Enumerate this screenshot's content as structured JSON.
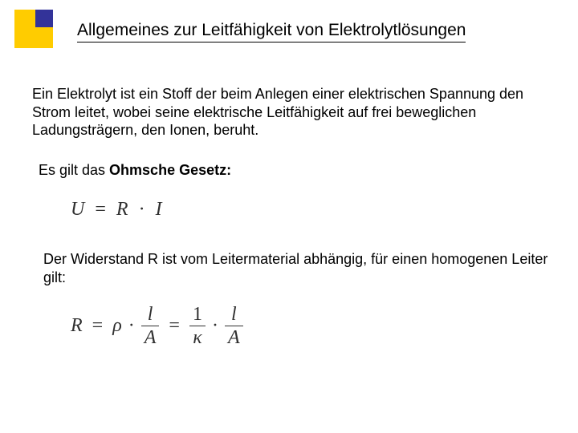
{
  "colors": {
    "background": "#ffffff",
    "text": "#000000",
    "formula_text": "#303030",
    "bullet_main": "#ffcc00",
    "bullet_accent": "#333399"
  },
  "title": "Allgemeines zur Leitfähigkeit von Elektrolytlösungen",
  "para1": "Ein Elektrolyt ist ein Stoff der beim Anlegen einer elektrischen Spannung den Strom leitet, wobei seine elektrische Leitfähigkeit auf frei beweglichen Ladungsträgern, den Ionen, beruht.",
  "para2_pre": "Es gilt das ",
  "para2_bold": "Ohmsche Gesetz:",
  "formula1": {
    "U": "U",
    "eq": "=",
    "R": "R",
    "dot": "·",
    "I": "I"
  },
  "para3": "Der Widerstand R ist vom Leitermaterial abhängig, für einen homogenen Leiter gilt:",
  "formula2": {
    "R": "R",
    "eq1": "=",
    "rho": "ρ",
    "dot1": "·",
    "frac1_num": "l",
    "frac1_den": "A",
    "eq2": "=",
    "frac2_num": "1",
    "frac2_den": "κ",
    "dot2": "·",
    "frac3_num": "l",
    "frac3_den": "A"
  }
}
